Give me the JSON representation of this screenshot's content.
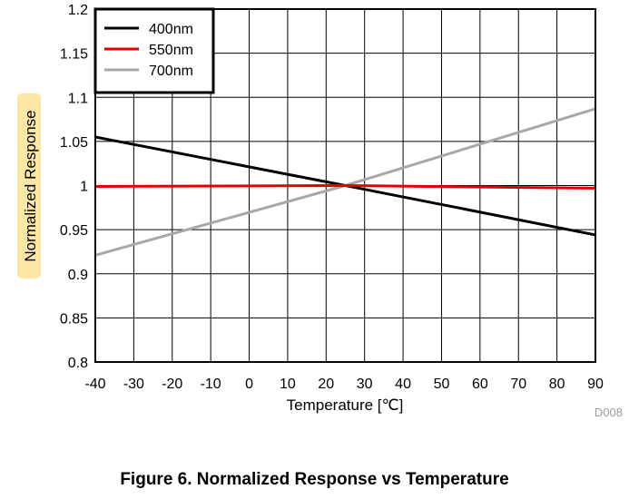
{
  "chart_data": {
    "type": "line",
    "title": "",
    "xlabel": "Temperature [℃]",
    "ylabel": "Normalized Response",
    "xlim": [
      -40,
      90
    ],
    "ylim": [
      0.8,
      1.2
    ],
    "xticks": [
      -40,
      -30,
      -20,
      -10,
      0,
      10,
      20,
      30,
      40,
      50,
      60,
      70,
      80,
      90
    ],
    "yticks": [
      "0.8",
      "0.85",
      "0.9",
      "0.95",
      "1",
      "1.05",
      "1.1",
      "1.15",
      "1.2"
    ],
    "grid": true,
    "legend_position": "top-left",
    "series": [
      {
        "name": "400nm",
        "color": "#000000",
        "x": [
          -40,
          25,
          90
        ],
        "y": [
          1.055,
          1.0,
          0.944
        ]
      },
      {
        "name": "550nm",
        "color": "#e00000",
        "x": [
          -40,
          25,
          90
        ],
        "y": [
          0.999,
          1.0,
          0.997
        ]
      },
      {
        "name": "700nm",
        "color": "#a8a8a8",
        "x": [
          -40,
          25,
          90
        ],
        "y": [
          0.921,
          1.0,
          1.087
        ]
      }
    ]
  },
  "code_label": "D008",
  "caption": "Figure 6. Normalized Response vs Temperature"
}
